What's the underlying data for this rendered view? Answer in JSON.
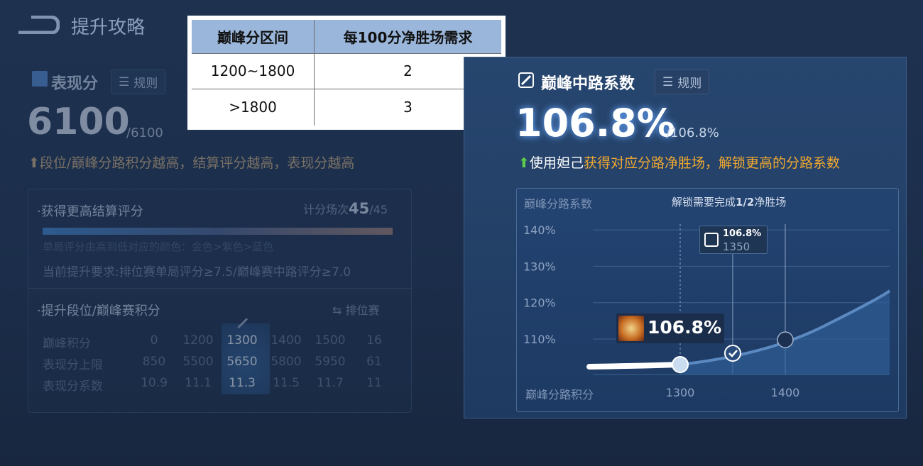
{
  "header": {
    "title": "提升攻略",
    "back_icon": "back-arrow-icon"
  },
  "performance": {
    "title": "表现分",
    "rule_label": "规则",
    "score": "6100",
    "max": "/6100",
    "hint": "段位/巅峰分路积分越高，结算评分越高，表现分越高",
    "settle": {
      "title": "·获得更高结算评分",
      "count_label": "计分场次",
      "count": "45",
      "count_max": "/45",
      "color_note": "单局评分由高到低对应的颜色：金色>紫色>蓝色",
      "requirement": "当前提升要求:排位赛单局评分≥7.5/巅峰赛中路评分≥7.0"
    },
    "rank": {
      "title": "·提升段位/巅峰赛积分",
      "switch_label": "排位赛",
      "rows": [
        {
          "label": "巅峰积分",
          "values": [
            "0",
            "1200",
            "1300",
            "1400",
            "1500",
            "16"
          ]
        },
        {
          "label": "表现分上限",
          "values": [
            "850",
            "5500",
            "5650",
            "5800",
            "5950",
            "61"
          ]
        },
        {
          "label": "表现分系数",
          "values": [
            "10.9",
            "11.1",
            "11.3",
            "11.5",
            "11.7",
            "11"
          ]
        }
      ],
      "highlight_index": 2
    }
  },
  "table": {
    "headers": [
      "巅峰分区间",
      "每100分净胜场需求"
    ],
    "rows": [
      [
        "1200~1800",
        "2"
      ],
      [
        ">1800",
        "3"
      ]
    ]
  },
  "coef": {
    "title": "巅峰中路系数",
    "rule_label": "规则",
    "value": "106.8%",
    "max": "/106.8%",
    "hint_pre": "使用",
    "hint_hero": "妲己",
    "hint_post": "获得对应分路净胜场，解锁更高的分路系数",
    "accent": "#f0a830",
    "arrow_color": "#5ccc4a"
  },
  "chart_data": {
    "type": "line",
    "ylabel": "巅峰分路系数",
    "xlabel": "巅峰分路积分",
    "subtitle_pre": "解锁需要完成",
    "subtitle_bold": "1/2",
    "subtitle_post": "净胜场",
    "yticks": [
      "140%",
      "130%",
      "120%",
      "110%"
    ],
    "xticks": [
      "1300",
      "1400"
    ],
    "current": {
      "x": 1300,
      "label": "106.8%"
    },
    "tooltip": {
      "value": "106.8%",
      "x_label": "1350"
    },
    "points": [
      {
        "x": 1300,
        "state": "current"
      },
      {
        "x": 1350,
        "state": "completed"
      },
      {
        "x": 1400,
        "state": "locked"
      }
    ]
  }
}
